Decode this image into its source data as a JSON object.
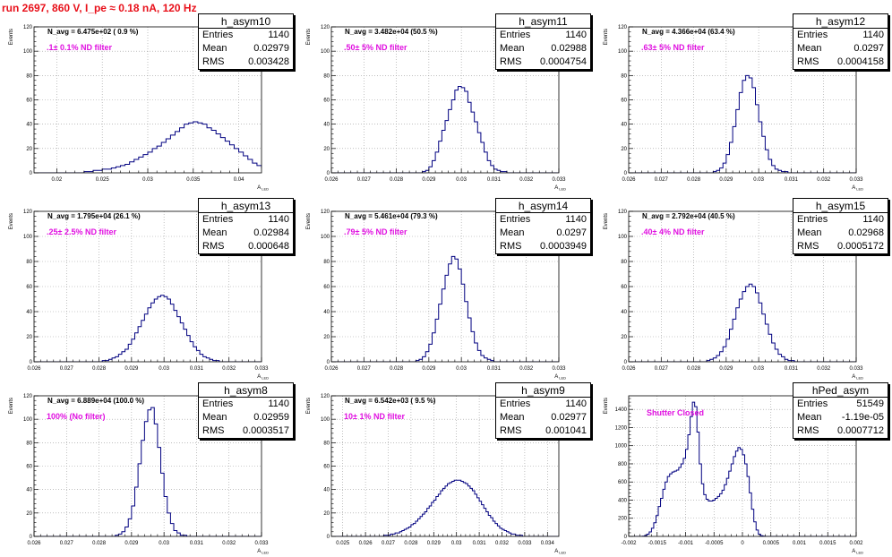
{
  "page_title": "run 2697,   860 V, I_pe ≈ 0.18 nA, 120 Hz",
  "ylabel": "Events",
  "xlabel": "A",
  "xlabel_sub": "LED",
  "stat_labels": {
    "entries": "Entries",
    "mean": "Mean",
    "rms": "RMS"
  },
  "pads": [
    {
      "name": "h_asym10",
      "entries": "1140",
      "mean": "0.02979",
      "rms": "0.003428",
      "navg": "N_avg = 6.475e+02 ( 0.9 %)",
      "filter": ".1± 0.1% ND filter"
    },
    {
      "name": "h_asym11",
      "entries": "1140",
      "mean": "0.02988",
      "rms": "0.0004754",
      "navg": "N_avg = 3.482e+04 (50.5 %)",
      "filter": ".50± 5% ND filter"
    },
    {
      "name": "h_asym12",
      "entries": "1140",
      "mean": "0.0297",
      "rms": "0.0004158",
      "navg": "N_avg = 4.366e+04 (63.4 %)",
      "filter": ".63± 5% ND filter"
    },
    {
      "name": "h_asym13",
      "entries": "1140",
      "mean": "0.02984",
      "rms": "0.000648",
      "navg": "N_avg = 1.795e+04 (26.1 %)",
      "filter": ".25± 2.5% ND filter"
    },
    {
      "name": "h_asym14",
      "entries": "1140",
      "mean": "0.0297",
      "rms": "0.0003949",
      "navg": "N_avg = 5.461e+04 (79.3 %)",
      "filter": ".79± 5% ND filter"
    },
    {
      "name": "h_asym15",
      "entries": "1140",
      "mean": "0.02968",
      "rms": "0.0005172",
      "navg": "N_avg = 2.792e+04 (40.5 %)",
      "filter": ".40± 4% ND filter"
    },
    {
      "name": "h_asym8",
      "entries": "1140",
      "mean": "0.02959",
      "rms": "0.0003517",
      "navg": "N_avg = 6.889e+04 (100.0 %)",
      "filter": "100% (No filter)"
    },
    {
      "name": "h_asym9",
      "entries": "1140",
      "mean": "0.02977",
      "rms": "0.001041",
      "navg": "N_avg = 6.542e+03 ( 9.5 %)",
      "filter": "10± 1% ND filter"
    },
    {
      "name": "hPed_asym",
      "entries": "51549",
      "mean": "-1.19e-05",
      "rms": "0.0007712",
      "navg": "",
      "filter": "Shutter Closed"
    }
  ],
  "chart_data": [
    {
      "type": "bar",
      "name": "h_asym10",
      "xlim": [
        0.0175,
        0.0425
      ],
      "ylim": [
        0,
        120
      ],
      "xticks": [
        "0.02",
        "0.025",
        "0.03",
        "0.035",
        "0.04"
      ],
      "yticks": [
        "0",
        "20",
        "40",
        "60",
        "80",
        "100",
        "120"
      ],
      "x0": 0.0175,
      "bin_width": 0.0005,
      "values": [
        0,
        0,
        0,
        0,
        0,
        0,
        0,
        0,
        0,
        0,
        0,
        1,
        1,
        2,
        2,
        3,
        3,
        4,
        5,
        6,
        7,
        9,
        11,
        13,
        15,
        17,
        20,
        22,
        25,
        28,
        31,
        34,
        37,
        40,
        41,
        42,
        41,
        40,
        37,
        35,
        32,
        29,
        26,
        23,
        20,
        17,
        14,
        11,
        8,
        6,
        4,
        3,
        2,
        2,
        1,
        1,
        0,
        0,
        0,
        0,
        0,
        0,
        0,
        0,
        0,
        0,
        0,
        0,
        0,
        0,
        0,
        0,
        0,
        0,
        0,
        0,
        0,
        0,
        0,
        0
      ]
    },
    {
      "type": "bar",
      "name": "h_asym11",
      "xlim": [
        0.026,
        0.033
      ],
      "ylim": [
        0,
        120
      ],
      "xticks": [
        "0.026",
        "0.027",
        "0.028",
        "0.029",
        "0.03",
        "0.031",
        "0.032",
        "0.033"
      ],
      "yticks": [
        "0",
        "20",
        "40",
        "60",
        "80",
        "100",
        "120"
      ],
      "x0": 0.026,
      "bin_width": 0.0001,
      "values": [
        0,
        0,
        0,
        0,
        0,
        0,
        0,
        0,
        0,
        0,
        0,
        0,
        0,
        0,
        0,
        0,
        0,
        0,
        0,
        0,
        0,
        0,
        0,
        0,
        0,
        0,
        0,
        0,
        1,
        2,
        5,
        10,
        17,
        26,
        35,
        43,
        52,
        60,
        68,
        71,
        70,
        67,
        58,
        50,
        42,
        33,
        25,
        17,
        10,
        6,
        3,
        2,
        1,
        1,
        0,
        0,
        0,
        0,
        0,
        0,
        0,
        0,
        0,
        0,
        0,
        0,
        0,
        0,
        0,
        0
      ]
    },
    {
      "type": "bar",
      "name": "h_asym12",
      "xlim": [
        0.026,
        0.033
      ],
      "ylim": [
        0,
        120
      ],
      "xticks": [
        "0.026",
        "0.027",
        "0.028",
        "0.029",
        "0.03",
        "0.031",
        "0.032",
        "0.033"
      ],
      "yticks": [
        "0",
        "20",
        "40",
        "60",
        "80",
        "100",
        "120"
      ],
      "x0": 0.026,
      "bin_width": 0.0001,
      "values": [
        0,
        0,
        0,
        0,
        0,
        0,
        0,
        0,
        0,
        0,
        0,
        0,
        0,
        0,
        0,
        0,
        0,
        0,
        0,
        0,
        0,
        0,
        0,
        0,
        0,
        0,
        1,
        2,
        4,
        8,
        15,
        25,
        38,
        52,
        66,
        76,
        80,
        78,
        70,
        56,
        42,
        30,
        19,
        11,
        6,
        3,
        2,
        1,
        1,
        0,
        0,
        0,
        0,
        0,
        0,
        0,
        0,
        0,
        0,
        0,
        0,
        0,
        0,
        0,
        0,
        0,
        0,
        0,
        0,
        0
      ]
    },
    {
      "type": "bar",
      "name": "h_asym13",
      "xlim": [
        0.026,
        0.033
      ],
      "ylim": [
        0,
        120
      ],
      "xticks": [
        "0.026",
        "0.027",
        "0.028",
        "0.029",
        "0.03",
        "0.031",
        "0.032",
        "0.033"
      ],
      "yticks": [
        "0",
        "20",
        "40",
        "60",
        "80",
        "100",
        "120"
      ],
      "x0": 0.026,
      "bin_width": 0.0001,
      "values": [
        0,
        0,
        0,
        0,
        0,
        0,
        0,
        0,
        0,
        0,
        0,
        0,
        0,
        0,
        0,
        0,
        0,
        0,
        0,
        0,
        0,
        1,
        1,
        2,
        3,
        4,
        6,
        8,
        10,
        14,
        18,
        23,
        28,
        33,
        38,
        43,
        47,
        50,
        52,
        53,
        52,
        50,
        46,
        41,
        36,
        31,
        26,
        21,
        16,
        12,
        9,
        6,
        4,
        3,
        2,
        1,
        1,
        0,
        0,
        0,
        0,
        0,
        0,
        0,
        0,
        0,
        0,
        0,
        0,
        0
      ]
    },
    {
      "type": "bar",
      "name": "h_asym14",
      "xlim": [
        0.026,
        0.033
      ],
      "ylim": [
        0,
        120
      ],
      "xticks": [
        "0.026",
        "0.027",
        "0.028",
        "0.029",
        "0.03",
        "0.031",
        "0.032",
        "0.033"
      ],
      "yticks": [
        "0",
        "20",
        "40",
        "60",
        "80",
        "100",
        "120"
      ],
      "x0": 0.026,
      "bin_width": 0.0001,
      "values": [
        0,
        0,
        0,
        0,
        0,
        0,
        0,
        0,
        0,
        0,
        0,
        0,
        0,
        0,
        0,
        0,
        0,
        0,
        0,
        0,
        0,
        0,
        0,
        0,
        0,
        0,
        1,
        2,
        4,
        8,
        14,
        23,
        34,
        46,
        58,
        69,
        78,
        84,
        82,
        74,
        62,
        48,
        35,
        24,
        15,
        9,
        5,
        3,
        2,
        1,
        0,
        0,
        0,
        0,
        0,
        0,
        0,
        0,
        0,
        0,
        0,
        0,
        0,
        0,
        0,
        0,
        0,
        0,
        0,
        0
      ]
    },
    {
      "type": "bar",
      "name": "h_asym15",
      "xlim": [
        0.026,
        0.033
      ],
      "ylim": [
        0,
        120
      ],
      "xticks": [
        "0.026",
        "0.027",
        "0.028",
        "0.029",
        "0.03",
        "0.031",
        "0.032",
        "0.033"
      ],
      "yticks": [
        "0",
        "20",
        "40",
        "60",
        "80",
        "100",
        "120"
      ],
      "x0": 0.026,
      "bin_width": 0.0001,
      "values": [
        0,
        0,
        0,
        0,
        0,
        0,
        0,
        0,
        0,
        0,
        0,
        0,
        0,
        0,
        0,
        0,
        0,
        0,
        0,
        0,
        0,
        0,
        0,
        0,
        1,
        2,
        3,
        5,
        8,
        12,
        18,
        26,
        34,
        43,
        50,
        56,
        60,
        62,
        60,
        55,
        47,
        38,
        30,
        22,
        15,
        10,
        6,
        4,
        2,
        1,
        1,
        0,
        0,
        0,
        0,
        0,
        0,
        0,
        0,
        0,
        0,
        0,
        0,
        0,
        0,
        0,
        0,
        0,
        0,
        0
      ]
    },
    {
      "type": "bar",
      "name": "h_asym8",
      "xlim": [
        0.026,
        0.033
      ],
      "ylim": [
        0,
        120
      ],
      "xticks": [
        "0.026",
        "0.027",
        "0.028",
        "0.029",
        "0.03",
        "0.031",
        "0.032",
        "0.033"
      ],
      "yticks": [
        "0",
        "20",
        "40",
        "60",
        "80",
        "100",
        "120"
      ],
      "x0": 0.026,
      "bin_width": 0.0001,
      "values": [
        0,
        0,
        0,
        0,
        0,
        0,
        0,
        0,
        0,
        0,
        0,
        0,
        0,
        0,
        0,
        0,
        0,
        0,
        0,
        0,
        0,
        0,
        0,
        0,
        0,
        1,
        2,
        4,
        8,
        15,
        26,
        42,
        62,
        82,
        98,
        108,
        110,
        96,
        76,
        54,
        34,
        20,
        11,
        5,
        3,
        1,
        1,
        0,
        0,
        0,
        0,
        0,
        0,
        0,
        0,
        0,
        0,
        0,
        0,
        0,
        0,
        0,
        0,
        0,
        0,
        0,
        0,
        0,
        0,
        0
      ]
    },
    {
      "type": "bar",
      "name": "h_asym9",
      "xlim": [
        0.0245,
        0.0345
      ],
      "ylim": [
        0,
        120
      ],
      "xticks": [
        "0.025",
        "0.026",
        "0.027",
        "0.028",
        "0.029",
        "0.03",
        "0.031",
        "0.032",
        "0.033",
        "0.034"
      ],
      "yticks": [
        "0",
        "20",
        "40",
        "60",
        "80",
        "100",
        "120"
      ],
      "x0": 0.0245,
      "bin_width": 0.0001,
      "values": [
        0,
        0,
        0,
        0,
        0,
        0,
        0,
        0,
        0,
        0,
        0,
        0,
        0,
        0,
        0,
        0,
        0,
        0,
        0,
        0,
        0,
        0,
        0,
        1,
        1,
        1,
        2,
        2,
        3,
        3,
        4,
        5,
        6,
        7,
        8,
        10,
        11,
        13,
        15,
        17,
        19,
        21,
        24,
        26,
        29,
        31,
        34,
        36,
        39,
        41,
        43,
        45,
        46,
        47,
        48,
        48,
        48,
        47,
        46,
        45,
        43,
        41,
        39,
        36,
        33,
        30,
        27,
        24,
        21,
        18,
        16,
        13,
        11,
        9,
        7,
        6,
        5,
        4,
        3,
        2,
        2,
        1,
        1,
        1,
        0,
        0,
        0,
        0,
        0,
        0,
        0,
        0,
        0,
        0,
        0,
        0,
        0,
        0,
        0,
        0
      ]
    },
    {
      "type": "bar",
      "name": "hPed_asym",
      "xlim": [
        -0.002,
        0.002
      ],
      "ylim": [
        0,
        1550
      ],
      "xticks": [
        "-0.002",
        "-0.0015",
        "-0.001",
        "-0.0005",
        "0",
        "0.0005",
        "0.001",
        "0.0015",
        "0.002"
      ],
      "yticks": [
        "0",
        "200",
        "400",
        "600",
        "800",
        "1000",
        "1200",
        "1400"
      ],
      "x0": -0.002,
      "bin_width": 4e-05,
      "values": [
        0,
        0,
        0,
        0,
        0,
        0,
        3,
        10,
        25,
        50,
        90,
        150,
        230,
        330,
        420,
        520,
        600,
        660,
        690,
        710,
        720,
        730,
        760,
        800,
        860,
        960,
        1120,
        1320,
        1480,
        1430,
        1150,
        800,
        580,
        460,
        410,
        390,
        390,
        400,
        420,
        440,
        470,
        510,
        570,
        640,
        720,
        800,
        880,
        940,
        980,
        960,
        900,
        800,
        660,
        480,
        300,
        160,
        70,
        25,
        8,
        2,
        0,
        0,
        0,
        0,
        0,
        0,
        0,
        0,
        0,
        0,
        0,
        0,
        0,
        0,
        0,
        0,
        0,
        0,
        0,
        0,
        0,
        0,
        0,
        0,
        0,
        0,
        0,
        0,
        0,
        0,
        0,
        0,
        0,
        0,
        0,
        0,
        0,
        0
      ]
    }
  ]
}
